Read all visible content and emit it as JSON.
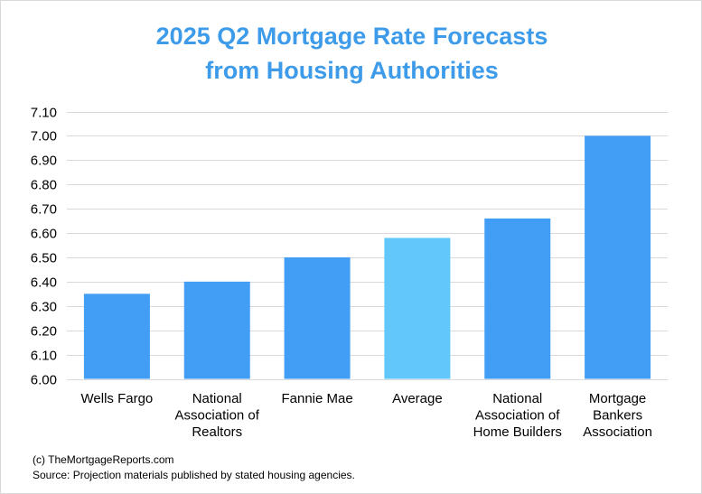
{
  "chart_data": {
    "type": "bar",
    "title_line1": "2025 Q2 Mortgage Rate Forecasts",
    "title_line2": "from Housing Authorities",
    "categories": [
      [
        "Wells Fargo"
      ],
      [
        "National",
        "Association of",
        "Realtors"
      ],
      [
        "Fannie Mae"
      ],
      [
        "Average"
      ],
      [
        "National",
        "Association of",
        "Home Builders"
      ],
      [
        "Mortgage",
        "Bankers",
        "Association"
      ]
    ],
    "values": [
      6.35,
      6.4,
      6.5,
      6.58,
      6.66,
      7.0
    ],
    "bar_colors": [
      "#429ef5",
      "#429ef5",
      "#429ef5",
      "#62c8fb",
      "#429ef5",
      "#429ef5"
    ],
    "ylim": [
      6.0,
      7.1
    ],
    "yticks": [
      "6.00",
      "6.10",
      "6.20",
      "6.30",
      "6.40",
      "6.50",
      "6.60",
      "6.70",
      "6.80",
      "6.90",
      "7.00",
      "7.10"
    ],
    "grid": true,
    "xlabel": "",
    "ylabel": ""
  },
  "footer": {
    "copyright": "(c) TheMortgageReports.com",
    "source": "Source: Projection materials published by stated housing agencies."
  },
  "colors": {
    "title": "#3d9be9",
    "bar": "#429ef5",
    "highlight": "#62c8fb",
    "grid": "#d9d9d9"
  }
}
